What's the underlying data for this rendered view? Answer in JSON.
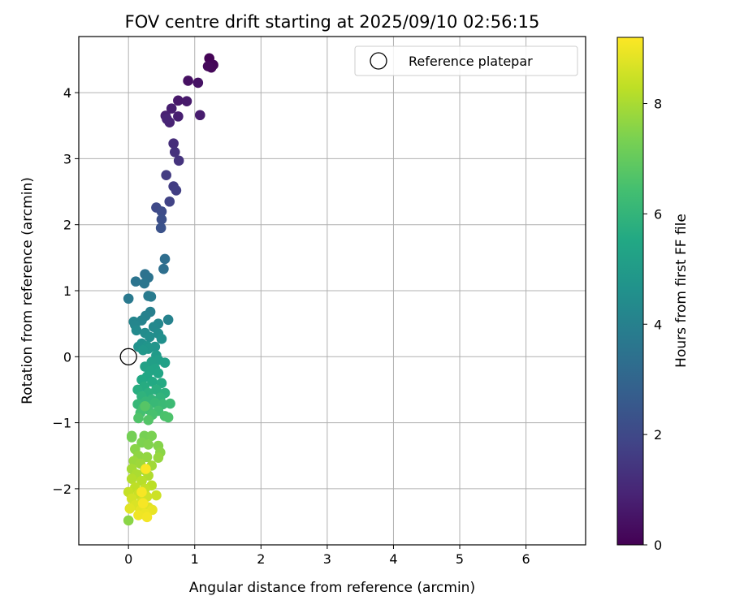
{
  "chart_data": {
    "type": "scatter",
    "title": "FOV centre drift starting at 2025/09/10 02:56:15",
    "xlabel": "Angular distance from reference (arcmin)",
    "ylabel": "Rotation from reference (arcmin)",
    "xlim": [
      -0.75,
      6.9
    ],
    "ylim": [
      -2.85,
      4.85
    ],
    "xticks": [
      0,
      1,
      2,
      3,
      4,
      5,
      6
    ],
    "yticks": [
      -2,
      -1,
      0,
      1,
      2,
      3,
      4
    ],
    "grid": true,
    "legend": {
      "placement": "top-right",
      "entries": [
        "Reference platepar"
      ]
    },
    "reference_point": {
      "x": 0,
      "y": 0,
      "label": "Reference platepar"
    },
    "colorbar": {
      "label": "Hours from first FF file",
      "colormap": "viridis",
      "range": [
        0,
        9.2
      ],
      "ticks": [
        0,
        2,
        4,
        6,
        8
      ]
    },
    "points": [
      {
        "x": 1.22,
        "y": 4.52,
        "t": 0.05
      },
      {
        "x": 1.28,
        "y": 4.42,
        "t": 0.1
      },
      {
        "x": 1.25,
        "y": 4.38,
        "t": 0.15
      },
      {
        "x": 1.2,
        "y": 4.4,
        "t": 0.2
      },
      {
        "x": 0.9,
        "y": 4.18,
        "t": 0.4
      },
      {
        "x": 1.05,
        "y": 4.15,
        "t": 0.45
      },
      {
        "x": 0.75,
        "y": 3.88,
        "t": 0.6
      },
      {
        "x": 0.88,
        "y": 3.87,
        "t": 0.65
      },
      {
        "x": 0.65,
        "y": 3.76,
        "t": 0.75
      },
      {
        "x": 1.08,
        "y": 3.66,
        "t": 0.7
      },
      {
        "x": 0.75,
        "y": 3.64,
        "t": 0.8
      },
      {
        "x": 0.56,
        "y": 3.65,
        "t": 0.85
      },
      {
        "x": 0.62,
        "y": 3.55,
        "t": 0.9
      },
      {
        "x": 0.58,
        "y": 3.6,
        "t": 0.95
      },
      {
        "x": 0.68,
        "y": 3.23,
        "t": 1.2
      },
      {
        "x": 0.7,
        "y": 3.1,
        "t": 1.3
      },
      {
        "x": 0.76,
        "y": 2.97,
        "t": 1.35
      },
      {
        "x": 0.57,
        "y": 2.75,
        "t": 1.6
      },
      {
        "x": 0.68,
        "y": 2.58,
        "t": 1.65
      },
      {
        "x": 0.72,
        "y": 2.52,
        "t": 1.7
      },
      {
        "x": 0.62,
        "y": 2.35,
        "t": 1.8
      },
      {
        "x": 0.42,
        "y": 2.26,
        "t": 2.0
      },
      {
        "x": 0.5,
        "y": 2.2,
        "t": 2.1
      },
      {
        "x": 0.5,
        "y": 2.08,
        "t": 2.2
      },
      {
        "x": 0.49,
        "y": 1.95,
        "t": 2.3
      },
      {
        "x": 0.55,
        "y": 1.48,
        "t": 3.3
      },
      {
        "x": 0.53,
        "y": 1.33,
        "t": 3.35
      },
      {
        "x": 0.25,
        "y": 1.25,
        "t": 3.45
      },
      {
        "x": 0.3,
        "y": 1.2,
        "t": 3.5
      },
      {
        "x": 0.11,
        "y": 1.14,
        "t": 3.55
      },
      {
        "x": 0.24,
        "y": 1.11,
        "t": 3.6
      },
      {
        "x": 0.0,
        "y": 0.88,
        "t": 3.7
      },
      {
        "x": 0.3,
        "y": 0.92,
        "t": 3.75
      },
      {
        "x": 0.34,
        "y": 0.91,
        "t": 3.8
      },
      {
        "x": 0.33,
        "y": 0.68,
        "t": 3.95
      },
      {
        "x": 0.26,
        "y": 0.62,
        "t": 4.0
      },
      {
        "x": 0.6,
        "y": 0.56,
        "t": 4.05
      },
      {
        "x": 0.2,
        "y": 0.55,
        "t": 4.1
      },
      {
        "x": 0.08,
        "y": 0.53,
        "t": 4.15
      },
      {
        "x": 0.1,
        "y": 0.48,
        "t": 4.2
      },
      {
        "x": 0.45,
        "y": 0.5,
        "t": 4.25
      },
      {
        "x": 0.38,
        "y": 0.45,
        "t": 4.3
      },
      {
        "x": 0.12,
        "y": 0.4,
        "t": 4.35
      },
      {
        "x": 0.25,
        "y": 0.36,
        "t": 4.4
      },
      {
        "x": 0.45,
        "y": 0.35,
        "t": 4.45
      },
      {
        "x": 0.32,
        "y": 0.3,
        "t": 4.5
      },
      {
        "x": 0.5,
        "y": 0.27,
        "t": 4.55
      },
      {
        "x": 0.2,
        "y": 0.2,
        "t": 4.6
      },
      {
        "x": 0.15,
        "y": 0.15,
        "t": 4.65
      },
      {
        "x": 0.28,
        "y": 0.16,
        "t": 4.7
      },
      {
        "x": 0.4,
        "y": 0.15,
        "t": 4.75
      },
      {
        "x": 0.3,
        "y": 0.12,
        "t": 4.8
      },
      {
        "x": 0.22,
        "y": 0.1,
        "t": 4.85
      },
      {
        "x": 0.42,
        "y": 0.02,
        "t": 5.0
      },
      {
        "x": 0.45,
        "y": -0.05,
        "t": 5.1
      },
      {
        "x": 0.35,
        "y": -0.08,
        "t": 5.15
      },
      {
        "x": 0.55,
        "y": -0.09,
        "t": 5.2
      },
      {
        "x": 0.25,
        "y": -0.15,
        "t": 5.25
      },
      {
        "x": 0.4,
        "y": -0.18,
        "t": 5.3
      },
      {
        "x": 0.32,
        "y": -0.22,
        "t": 5.35
      },
      {
        "x": 0.45,
        "y": -0.25,
        "t": 5.4
      },
      {
        "x": 0.28,
        "y": -0.3,
        "t": 5.45
      },
      {
        "x": 0.2,
        "y": -0.35,
        "t": 5.5
      },
      {
        "x": 0.36,
        "y": -0.38,
        "t": 5.55
      },
      {
        "x": 0.5,
        "y": -0.4,
        "t": 5.6
      },
      {
        "x": 0.24,
        "y": -0.45,
        "t": 5.65
      },
      {
        "x": 0.14,
        "y": -0.5,
        "t": 5.7
      },
      {
        "x": 0.42,
        "y": -0.5,
        "t": 5.75
      },
      {
        "x": 0.3,
        "y": -0.55,
        "t": 5.8
      },
      {
        "x": 0.55,
        "y": -0.55,
        "t": 5.85
      },
      {
        "x": 0.2,
        "y": -0.6,
        "t": 5.9
      },
      {
        "x": 0.48,
        "y": -0.62,
        "t": 5.95
      },
      {
        "x": 0.35,
        "y": -0.65,
        "t": 6.0
      },
      {
        "x": 0.26,
        "y": -0.68,
        "t": 6.05
      },
      {
        "x": 0.14,
        "y": -0.72,
        "t": 6.1
      },
      {
        "x": 0.4,
        "y": -0.7,
        "t": 6.15
      },
      {
        "x": 0.52,
        "y": -0.72,
        "t": 6.2
      },
      {
        "x": 0.63,
        "y": -0.71,
        "t": 6.25
      },
      {
        "x": 0.22,
        "y": -0.78,
        "t": 6.3
      },
      {
        "x": 0.3,
        "y": -0.8,
        "t": 6.35
      },
      {
        "x": 0.45,
        "y": -0.82,
        "t": 6.4
      },
      {
        "x": 0.18,
        "y": -0.85,
        "t": 6.45
      },
      {
        "x": 0.36,
        "y": -0.88,
        "t": 6.5
      },
      {
        "x": 0.55,
        "y": -0.9,
        "t": 6.55
      },
      {
        "x": 0.6,
        "y": -0.92,
        "t": 6.6
      },
      {
        "x": 0.15,
        "y": -0.93,
        "t": 6.65
      },
      {
        "x": 0.3,
        "y": -0.96,
        "t": 6.7
      },
      {
        "x": 0.25,
        "y": -0.75,
        "t": 6.75
      },
      {
        "x": 0.05,
        "y": -1.2,
        "t": 7.2
      },
      {
        "x": 0.05,
        "y": -1.22,
        "t": 7.25
      },
      {
        "x": 0.24,
        "y": -1.2,
        "t": 7.3
      },
      {
        "x": 0.35,
        "y": -1.2,
        "t": 7.35
      },
      {
        "x": 0.2,
        "y": -1.3,
        "t": 7.4
      },
      {
        "x": 0.3,
        "y": -1.33,
        "t": 7.45
      },
      {
        "x": 0.45,
        "y": -1.35,
        "t": 7.5
      },
      {
        "x": 0.1,
        "y": -1.4,
        "t": 7.55
      },
      {
        "x": 0.48,
        "y": -1.45,
        "t": 7.6
      },
      {
        "x": 0.15,
        "y": -1.5,
        "t": 7.65
      },
      {
        "x": 0.28,
        "y": -1.52,
        "t": 7.7
      },
      {
        "x": 0.45,
        "y": -1.53,
        "t": 7.75
      },
      {
        "x": 0.08,
        "y": -1.58,
        "t": 7.8
      },
      {
        "x": 0.18,
        "y": -1.62,
        "t": 7.85
      },
      {
        "x": 0.35,
        "y": -1.65,
        "t": 7.9
      },
      {
        "x": 0.05,
        "y": -1.7,
        "t": 7.95
      },
      {
        "x": 0.25,
        "y": -1.72,
        "t": 8.0
      },
      {
        "x": 0.12,
        "y": -1.78,
        "t": 8.05
      },
      {
        "x": 0.3,
        "y": -1.8,
        "t": 8.1
      },
      {
        "x": 0.05,
        "y": -1.85,
        "t": 8.15
      },
      {
        "x": 0.2,
        "y": -1.88,
        "t": 8.2
      },
      {
        "x": 0.35,
        "y": -1.95,
        "t": 8.25
      },
      {
        "x": 0.1,
        "y": -1.98,
        "t": 8.3
      },
      {
        "x": 0.25,
        "y": -2.0,
        "t": 8.35
      },
      {
        "x": 0.0,
        "y": -2.05,
        "t": 8.4
      },
      {
        "x": 0.15,
        "y": -2.08,
        "t": 8.45
      },
      {
        "x": 0.42,
        "y": -2.1,
        "t": 8.5
      },
      {
        "x": 0.28,
        "y": -2.12,
        "t": 8.55
      },
      {
        "x": 0.05,
        "y": -2.15,
        "t": 8.6
      },
      {
        "x": 0.2,
        "y": -2.2,
        "t": 8.65
      },
      {
        "x": 0.1,
        "y": -2.25,
        "t": 8.7
      },
      {
        "x": 0.3,
        "y": -2.28,
        "t": 8.75
      },
      {
        "x": 0.02,
        "y": -2.3,
        "t": 8.8
      },
      {
        "x": 0.18,
        "y": -2.33,
        "t": 8.85
      },
      {
        "x": 0.36,
        "y": -2.32,
        "t": 8.9
      },
      {
        "x": 0.25,
        "y": -2.38,
        "t": 8.95
      },
      {
        "x": 0.15,
        "y": -2.4,
        "t": 9.0
      },
      {
        "x": 0.28,
        "y": -2.43,
        "t": 9.05
      },
      {
        "x": 0.0,
        "y": -2.48,
        "t": 7.6
      },
      {
        "x": 0.26,
        "y": -1.7,
        "t": 9.15
      },
      {
        "x": 0.22,
        "y": -2.22,
        "t": 9.1
      },
      {
        "x": 0.2,
        "y": -2.05,
        "t": 9.12
      }
    ]
  }
}
